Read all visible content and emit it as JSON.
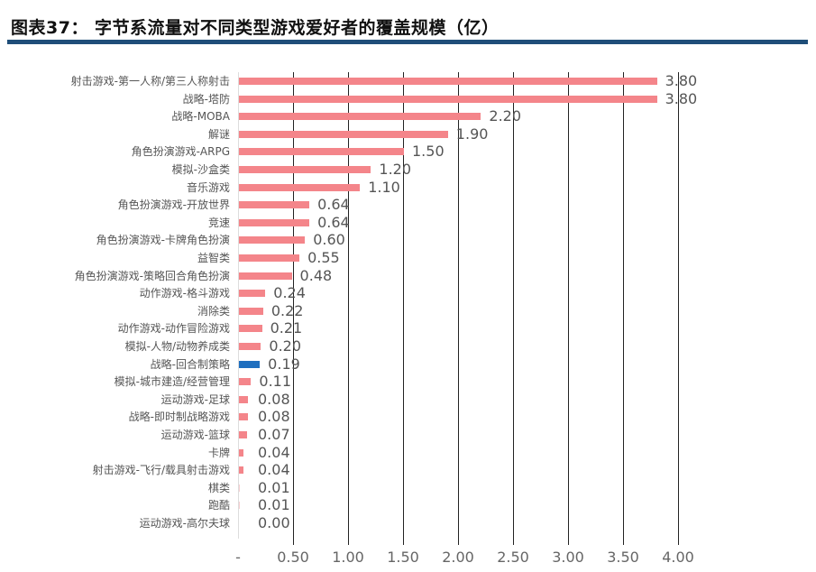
{
  "title": "图表37： 字节系流量对不同类型游戏爱好者的覆盖规模（亿）",
  "colors": {
    "bar": "#F4858A",
    "highlight": "#1F6FBF",
    "title_rule": "#1F4E79",
    "grid": "#222222"
  },
  "chart_data": {
    "type": "bar",
    "orientation": "horizontal",
    "title": "字节系流量对不同类型游戏爱好者的覆盖规模（亿）",
    "xlabel": "",
    "ylabel": "",
    "xlim": [
      0,
      4.0
    ],
    "grid": true,
    "legend": null,
    "x_tick_labels": [
      "-",
      "0.50",
      "1.00",
      "1.50",
      "2.00",
      "2.50",
      "3.00",
      "3.50",
      "4.00"
    ],
    "x_ticks": [
      0,
      0.5,
      1.0,
      1.5,
      2.0,
      2.5,
      3.0,
      3.5,
      4.0
    ],
    "highlighted_category": "战略-回合制策略",
    "categories": [
      "射击游戏-第一人称/第三人称射击",
      "战略-塔防",
      "战略-MOBA",
      "解谜",
      "角色扮演游戏-ARPG",
      "模拟-沙盒类",
      "音乐游戏",
      "角色扮演游戏-开放世界",
      "竞速",
      "角色扮演游戏-卡牌角色扮演",
      "益智类",
      "角色扮演游戏-策略回合角色扮演",
      "动作游戏-格斗游戏",
      "消除类",
      "动作游戏-动作冒险游戏",
      "模拟-人物/动物养成类",
      "战略-回合制策略",
      "模拟-城市建造/经营管理",
      "运动游戏-足球",
      "战略-即时制战略游戏",
      "运动游戏-篮球",
      "卡牌",
      "射击游戏-飞行/载具射击游戏",
      "棋类",
      "跑酷",
      "运动游戏-高尔夫球"
    ],
    "values": [
      3.8,
      3.8,
      2.2,
      1.9,
      1.5,
      1.2,
      1.1,
      0.64,
      0.64,
      0.6,
      0.55,
      0.48,
      0.24,
      0.22,
      0.21,
      0.2,
      0.19,
      0.11,
      0.08,
      0.08,
      0.07,
      0.04,
      0.04,
      0.01,
      0.01,
      0.0
    ],
    "value_labels": [
      "3.80",
      "3.80",
      "2.20",
      "1.90",
      "1.50",
      "1.20",
      "1.10",
      "0.64",
      "0.64",
      "0.60",
      "0.55",
      "0.48",
      "0.24",
      "0.22",
      "0.21",
      "0.20",
      "0.19",
      "0.11",
      "0.08",
      "0.08",
      "0.07",
      "0.04",
      "0.04",
      "0.01",
      "0.01",
      "0.00"
    ]
  }
}
